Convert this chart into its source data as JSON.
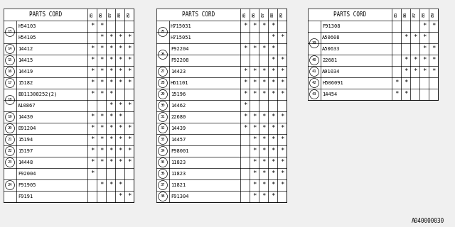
{
  "tables": [
    {
      "cols": [
        "PARTS CORD",
        "85",
        "86",
        "87",
        "88",
        "89"
      ],
      "rows": [
        {
          "num": "13",
          "part": "H54103",
          "marks": [
            1,
            1,
            0,
            0,
            0
          ]
        },
        {
          "num": "13",
          "part": "H54105",
          "marks": [
            0,
            1,
            1,
            1,
            1
          ]
        },
        {
          "num": "14",
          "part": "14412",
          "marks": [
            1,
            1,
            1,
            1,
            1
          ]
        },
        {
          "num": "15",
          "part": "14415",
          "marks": [
            1,
            1,
            1,
            1,
            1
          ]
        },
        {
          "num": "16",
          "part": "14419",
          "marks": [
            1,
            1,
            1,
            1,
            1
          ]
        },
        {
          "num": "17",
          "part": "15182",
          "marks": [
            1,
            1,
            1,
            1,
            1
          ]
        },
        {
          "num": "18",
          "part": "B011308252(2)",
          "marks": [
            1,
            1,
            1,
            0,
            0
          ]
        },
        {
          "num": "18",
          "part": "A10867",
          "marks": [
            0,
            0,
            1,
            1,
            1
          ]
        },
        {
          "num": "19",
          "part": "14430",
          "marks": [
            1,
            1,
            1,
            1,
            0
          ]
        },
        {
          "num": "20",
          "part": "D91204",
          "marks": [
            1,
            1,
            1,
            1,
            1
          ]
        },
        {
          "num": "21",
          "part": "15194",
          "marks": [
            1,
            1,
            1,
            1,
            1
          ]
        },
        {
          "num": "22",
          "part": "15197",
          "marks": [
            1,
            1,
            1,
            1,
            1
          ]
        },
        {
          "num": "23",
          "part": "14448",
          "marks": [
            1,
            1,
            1,
            1,
            1
          ]
        },
        {
          "num": "24",
          "part": "F92004",
          "marks": [
            1,
            0,
            0,
            0,
            0
          ]
        },
        {
          "num": "24",
          "part": "F91905",
          "marks": [
            0,
            1,
            1,
            1,
            0
          ]
        },
        {
          "num": "24",
          "part": "F9191",
          "marks": [
            0,
            0,
            0,
            1,
            1
          ]
        }
      ]
    },
    {
      "cols": [
        "PARTS CORD",
        "85",
        "86",
        "87",
        "88",
        "89"
      ],
      "rows": [
        {
          "num": "25",
          "part": "H715031",
          "marks": [
            1,
            1,
            1,
            1,
            0
          ]
        },
        {
          "num": "25",
          "part": "H715051",
          "marks": [
            0,
            0,
            0,
            1,
            1
          ]
        },
        {
          "num": "26",
          "part": "F92204",
          "marks": [
            1,
            1,
            1,
            1,
            0
          ]
        },
        {
          "num": "26",
          "part": "F92208",
          "marks": [
            0,
            0,
            0,
            1,
            1
          ]
        },
        {
          "num": "27",
          "part": "14423",
          "marks": [
            1,
            1,
            1,
            1,
            1
          ]
        },
        {
          "num": "28",
          "part": "H61101",
          "marks": [
            1,
            1,
            1,
            1,
            1
          ]
        },
        {
          "num": "29",
          "part": "15196",
          "marks": [
            1,
            1,
            1,
            1,
            1
          ]
        },
        {
          "num": "30",
          "part": "14462",
          "marks": [
            1,
            0,
            0,
            0,
            0
          ]
        },
        {
          "num": "31",
          "part": "22680",
          "marks": [
            1,
            1,
            1,
            1,
            1
          ]
        },
        {
          "num": "32",
          "part": "14439",
          "marks": [
            1,
            1,
            1,
            1,
            1
          ]
        },
        {
          "num": "33",
          "part": "14457",
          "marks": [
            0,
            1,
            1,
            1,
            1
          ]
        },
        {
          "num": "34",
          "part": "F98001",
          "marks": [
            0,
            1,
            1,
            1,
            1
          ]
        },
        {
          "num": "35",
          "part": "11823",
          "marks": [
            0,
            1,
            1,
            1,
            1
          ]
        },
        {
          "num": "36",
          "part": "11823",
          "marks": [
            0,
            1,
            1,
            1,
            1
          ]
        },
        {
          "num": "37",
          "part": "11821",
          "marks": [
            0,
            1,
            1,
            1,
            1
          ]
        },
        {
          "num": "38",
          "part": "F91304",
          "marks": [
            0,
            1,
            1,
            1,
            0
          ]
        }
      ]
    },
    {
      "cols": [
        "PARTS CORD",
        "85",
        "86",
        "87",
        "88",
        "89"
      ],
      "rows": [
        {
          "num": "",
          "part": "F91308",
          "marks": [
            0,
            0,
            0,
            1,
            1
          ]
        },
        {
          "num": "39",
          "part": "A50608",
          "marks": [
            0,
            1,
            1,
            1,
            0
          ]
        },
        {
          "num": "39",
          "part": "A50633",
          "marks": [
            0,
            0,
            0,
            1,
            1
          ]
        },
        {
          "num": "40",
          "part": "22681",
          "marks": [
            0,
            1,
            1,
            1,
            1
          ]
        },
        {
          "num": "41",
          "part": "A91034",
          "marks": [
            0,
            1,
            1,
            1,
            1
          ]
        },
        {
          "num": "42",
          "part": "H506091",
          "marks": [
            1,
            1,
            0,
            0,
            0
          ]
        },
        {
          "num": "43",
          "part": "14454",
          "marks": [
            1,
            1,
            0,
            0,
            0
          ]
        }
      ]
    }
  ],
  "bg_color": "#f0f0f0",
  "table_bg": "#ffffff",
  "line_color": "#000000",
  "text_color": "#000000",
  "watermark": "A040000030",
  "fig_width": 6.4,
  "fig_height": 3.2,
  "dpi": 100
}
